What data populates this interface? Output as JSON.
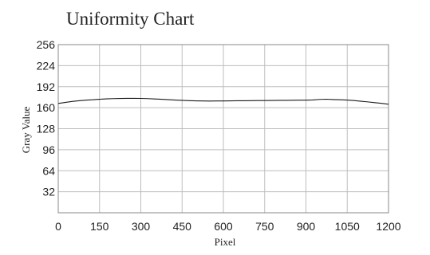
{
  "chart_data": {
    "type": "line",
    "title": "Uniformity  Chart",
    "xlabel": "Pixel",
    "ylabel": "Gray Value",
    "xlim": [
      0,
      1200
    ],
    "ylim": [
      0,
      256
    ],
    "xticks": [
      0,
      150,
      300,
      450,
      600,
      750,
      900,
      1050,
      1200
    ],
    "yticks": [
      32,
      64,
      96,
      128,
      160,
      192,
      224,
      256
    ],
    "grid": true,
    "legend": "none",
    "series": [
      {
        "color": "#1a1a1a",
        "x": [
          0,
          25,
          50,
          75,
          100,
          125,
          150,
          175,
          200,
          225,
          250,
          275,
          300,
          325,
          350,
          375,
          400,
          425,
          450,
          475,
          500,
          525,
          550,
          575,
          600,
          625,
          650,
          675,
          700,
          725,
          750,
          775,
          800,
          825,
          850,
          875,
          900,
          925,
          950,
          975,
          1000,
          1025,
          1050,
          1075,
          1100,
          1125,
          1150,
          1175,
          1200
        ],
        "y": [
          166.5,
          168,
          169.5,
          170.5,
          171.5,
          172,
          172.8,
          173.4,
          173.8,
          174,
          174.2,
          174.2,
          174.1,
          173.8,
          173.3,
          172.8,
          172.2,
          171.6,
          171.1,
          170.7,
          170.4,
          170.2,
          170.1,
          170.2,
          170.3,
          170.4,
          170.5,
          170.6,
          170.7,
          170.8,
          170.9,
          171,
          171.1,
          171.2,
          171.3,
          171.4,
          171.5,
          171.8,
          172.6,
          172.9,
          172.4,
          172,
          171.6,
          170.8,
          169.8,
          168.8,
          167.7,
          166.6,
          165.2
        ]
      }
    ]
  }
}
